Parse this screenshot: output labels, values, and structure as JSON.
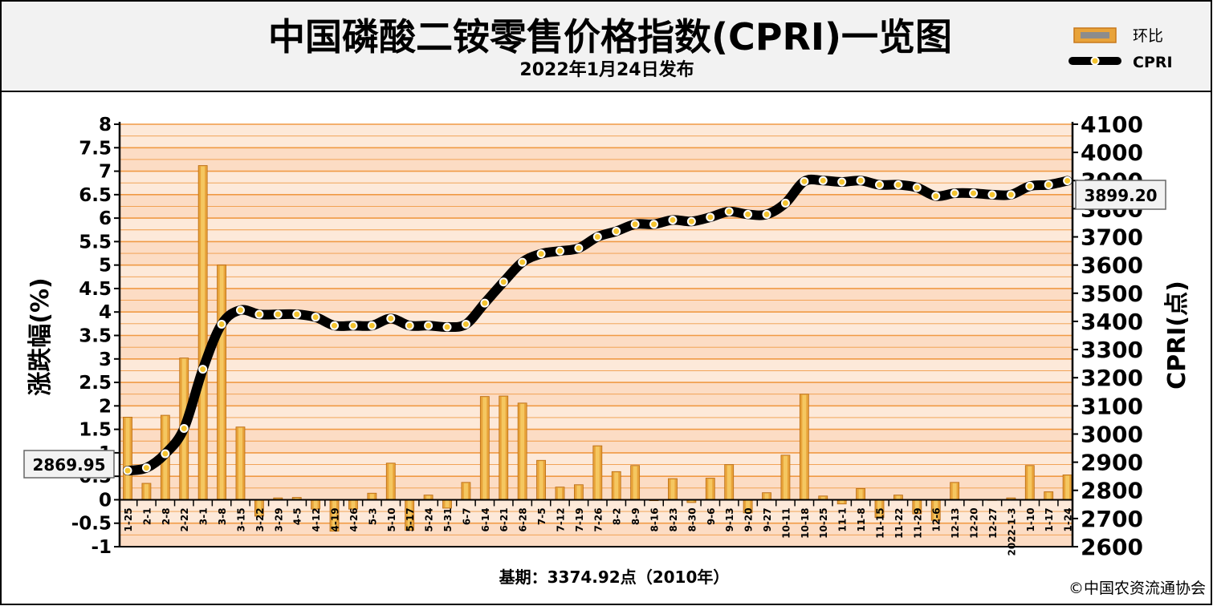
{
  "chart_data": {
    "type": "bar+line",
    "title": "中国磷酸二铵零售价格指数(CPRI)一览图",
    "subtitle": "2022年1月24日发布",
    "ylabel_left": "涨跌幅(%)",
    "ylabel_right": "CPRI(点)",
    "footer_base": "基期：3374.92点（2010年）",
    "copyright": "©中国农资流通协会",
    "legend": {
      "bar_label": "环比",
      "line_label": "CPRI",
      "placement": "top-right"
    },
    "start_label": "2869.95",
    "end_label": "3899.20",
    "y_left": {
      "min": -1,
      "max": 8,
      "ticks": [
        "-1",
        "-0.5",
        "0",
        "0.5",
        "1",
        "1.5",
        "2",
        "2.5",
        "3",
        "3.5",
        "4",
        "4.5",
        "5",
        "5.5",
        "6",
        "6.5",
        "7",
        "7.5",
        "8"
      ]
    },
    "y_right": {
      "min": 2600,
      "max": 4100,
      "ticks": [
        "2600",
        "2700",
        "2800",
        "2900",
        "3000",
        "3100",
        "3200",
        "3300",
        "3400",
        "3500",
        "3600",
        "3700",
        "3800",
        "3900",
        "4000",
        "4100"
      ]
    },
    "categories": [
      "1-25",
      "2-1",
      "2-8",
      "2-22",
      "3-1",
      "3-8",
      "3-15",
      "3-22",
      "3-29",
      "4-5",
      "4-12",
      "4-19",
      "4-26",
      "5-3",
      "5-10",
      "5-17",
      "5-24",
      "5-31",
      "6-7",
      "6-14",
      "6-21",
      "6-28",
      "7-5",
      "7-12",
      "7-19",
      "7-26",
      "8-2",
      "8-9",
      "8-16",
      "8-23",
      "8-30",
      "9-6",
      "9-13",
      "9-20",
      "9-27",
      "10-11",
      "10-18",
      "10-25",
      "11-1",
      "11-8",
      "11-15",
      "11-22",
      "11-29",
      "12-6",
      "12-13",
      "12-20",
      "12-27",
      "2022-1-3",
      "1-10",
      "1-17",
      "1-24"
    ],
    "series": [
      {
        "name": "环比",
        "type": "bar",
        "values": [
          1.76,
          0.35,
          1.8,
          3.02,
          7.12,
          5.0,
          1.55,
          -0.35,
          0.04,
          0.05,
          -0.2,
          -0.67,
          -0.2,
          0.14,
          0.78,
          -0.65,
          0.1,
          -0.18,
          0.37,
          2.2,
          2.21,
          2.06,
          0.84,
          0.27,
          0.32,
          1.15,
          0.6,
          0.73,
          -0.02,
          0.45,
          -0.06,
          0.46,
          0.75,
          -0.28,
          0.15,
          0.95,
          2.25,
          0.08,
          -0.09,
          0.24,
          -0.38,
          0.1,
          -0.3,
          -0.44,
          0.37,
          0.0,
          0.0,
          0.04,
          0.73,
          0.17,
          0.53
        ]
      },
      {
        "name": "CPRI",
        "type": "line",
        "values": [
          2869.95,
          2880,
          2930,
          3020,
          3230,
          3390,
          3440,
          3425,
          3425,
          3425,
          3415,
          3385,
          3385,
          3385,
          3410,
          3385,
          3385,
          3380,
          3390,
          3465,
          3540,
          3610,
          3640,
          3650,
          3660,
          3700,
          3720,
          3745,
          3745,
          3760,
          3755,
          3770,
          3790,
          3780,
          3780,
          3820,
          3897,
          3900,
          3895,
          3900,
          3885,
          3885,
          3875,
          3845,
          3855,
          3855,
          3850,
          3850,
          3880,
          3885,
          3899.2
        ]
      }
    ],
    "colors": {
      "bar_fill": "#e8a33a",
      "grid": "#f09a45",
      "plot_bg_light": "#fde9d9",
      "plot_bg_band": "#fbd2b2",
      "line": "#000000",
      "marker_fill": "#f4c430",
      "header_bg": "#f2f2f2"
    }
  }
}
